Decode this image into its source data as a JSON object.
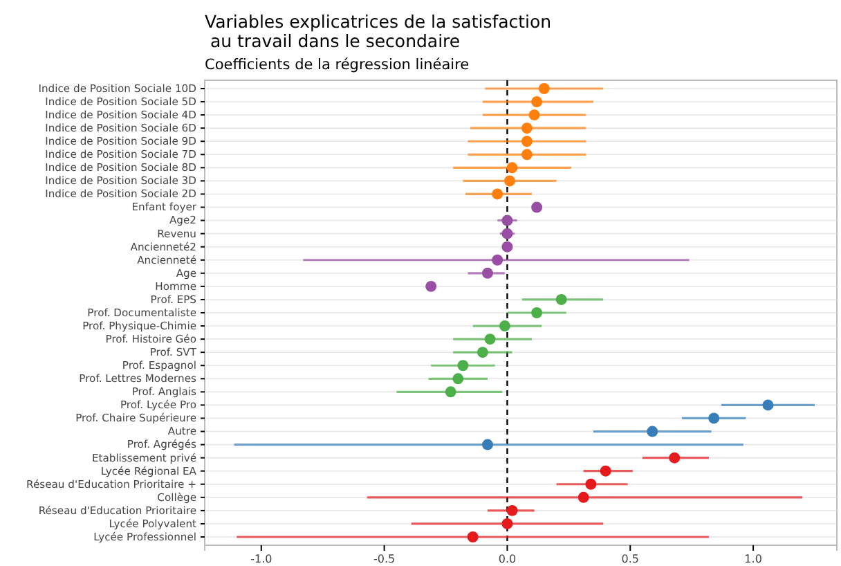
{
  "chart_data": {
    "type": "scatter",
    "orientation": "horizontal",
    "title": "Variables explicatrices de la satisfaction\n au travail dans le secondaire",
    "subtitle": "Coefficients de la régression linéaire",
    "categories": [
      "Indice de Position Sociale 10D",
      "Indice de Position Sociale 5D",
      "Indice de Position Sociale 4D",
      "Indice de Position Sociale 6D",
      "Indice de Position Sociale 9D",
      "Indice de Position Sociale 7D",
      "Indice de Position Sociale 8D",
      "Indice de Position Sociale 3D",
      "Indice de Position Sociale 2D",
      "Enfant foyer",
      "Age2",
      "Revenu",
      "Ancienneté2",
      "Ancienneté",
      "Age",
      "Homme",
      "Prof. EPS",
      "Prof. Documentaliste",
      "Prof. Physique-Chimie",
      "Prof. Histoire Géo",
      "Prof. SVT",
      "Prof. Espagnol",
      "Prof. Lettres Modernes",
      "Prof. Anglais",
      "Prof. Lycée Pro",
      "Prof. Chaire Supérieure",
      "Autre",
      "Prof. Agrégés",
      "Etablissement privé",
      "Lycée Régional EA",
      "Réseau d'Education Prioritaire +",
      "Collège",
      "Réseau d'Education Prioritaire",
      "Lycée Polyvalent",
      "Lycée Professionnel"
    ],
    "series": [
      {
        "color": "#ff7f0e",
        "values": [
          0.15,
          0.12,
          0.11,
          0.08,
          0.08,
          0.08,
          0.02,
          0.01,
          -0.04,
          null,
          null,
          null,
          null,
          null,
          null,
          null,
          null,
          null,
          null,
          null,
          null,
          null,
          null,
          null,
          null,
          null,
          null,
          null,
          null,
          null,
          null,
          null,
          null,
          null,
          null
        ],
        "errors": [
          [
            -0.09,
            0.39
          ],
          [
            -0.1,
            0.35
          ],
          [
            -0.1,
            0.32
          ],
          [
            -0.15,
            0.32
          ],
          [
            -0.16,
            0.32
          ],
          [
            -0.16,
            0.32
          ],
          [
            -0.22,
            0.26
          ],
          [
            -0.18,
            0.2
          ],
          [
            -0.17,
            0.1
          ],
          null,
          null,
          null,
          null,
          null,
          null,
          null,
          null,
          null,
          null,
          null,
          null,
          null,
          null,
          null,
          null,
          null,
          null,
          null,
          null,
          null,
          null,
          null,
          null,
          null,
          null
        ]
      },
      {
        "color": "#984ea3",
        "values": [
          null,
          null,
          null,
          null,
          null,
          null,
          null,
          null,
          null,
          0.12,
          0.0,
          0.0,
          0.0,
          -0.04,
          -0.08,
          -0.31,
          null,
          null,
          null,
          null,
          null,
          null,
          null,
          null,
          null,
          null,
          null,
          null,
          null,
          null,
          null,
          null,
          null,
          null,
          null
        ],
        "errors": [
          null,
          null,
          null,
          null,
          null,
          null,
          null,
          null,
          null,
          null,
          [
            -0.04,
            0.04
          ],
          [
            -0.03,
            0.03
          ],
          null,
          [
            -0.83,
            0.74
          ],
          [
            -0.16,
            -0.01
          ],
          null,
          null,
          null,
          null,
          null,
          null,
          null,
          null,
          null,
          null,
          null,
          null,
          null,
          null,
          null,
          null,
          null,
          null,
          null,
          null
        ]
      },
      {
        "color": "#4daf4a",
        "values": [
          null,
          null,
          null,
          null,
          null,
          null,
          null,
          null,
          null,
          null,
          null,
          null,
          null,
          null,
          null,
          null,
          0.22,
          0.12,
          -0.01,
          -0.07,
          -0.1,
          -0.18,
          -0.2,
          -0.23,
          null,
          null,
          null,
          null,
          null,
          null,
          null,
          null,
          null,
          null,
          null
        ],
        "errors": [
          null,
          null,
          null,
          null,
          null,
          null,
          null,
          null,
          null,
          null,
          null,
          null,
          null,
          null,
          null,
          null,
          [
            0.06,
            0.39
          ],
          [
            0.0,
            0.24
          ],
          [
            -0.14,
            0.14
          ],
          [
            -0.22,
            0.1
          ],
          [
            -0.22,
            0.02
          ],
          [
            -0.31,
            -0.05
          ],
          [
            -0.32,
            -0.08
          ],
          [
            -0.45,
            -0.02
          ],
          null,
          null,
          null,
          null,
          null,
          null,
          null,
          null,
          null,
          null,
          null
        ]
      },
      {
        "color": "#377eb8",
        "values": [
          null,
          null,
          null,
          null,
          null,
          null,
          null,
          null,
          null,
          null,
          null,
          null,
          null,
          null,
          null,
          null,
          null,
          null,
          null,
          null,
          null,
          null,
          null,
          null,
          1.06,
          0.84,
          0.59,
          -0.08,
          null,
          null,
          null,
          null,
          null,
          null,
          null
        ],
        "errors": [
          null,
          null,
          null,
          null,
          null,
          null,
          null,
          null,
          null,
          null,
          null,
          null,
          null,
          null,
          null,
          null,
          null,
          null,
          null,
          null,
          null,
          null,
          null,
          null,
          [
            0.87,
            1.25
          ],
          [
            0.71,
            0.97
          ],
          [
            0.35,
            0.83
          ],
          [
            -1.11,
            0.96
          ],
          null,
          null,
          null,
          null,
          null,
          null,
          null
        ]
      },
      {
        "color": "#e41a1c",
        "values": [
          null,
          null,
          null,
          null,
          null,
          null,
          null,
          null,
          null,
          null,
          null,
          null,
          null,
          null,
          null,
          null,
          null,
          null,
          null,
          null,
          null,
          null,
          null,
          null,
          null,
          null,
          null,
          null,
          0.68,
          0.4,
          0.34,
          0.31,
          0.02,
          0.0,
          -0.14
        ],
        "errors": [
          null,
          null,
          null,
          null,
          null,
          null,
          null,
          null,
          null,
          null,
          null,
          null,
          null,
          null,
          null,
          null,
          null,
          null,
          null,
          null,
          null,
          null,
          null,
          null,
          null,
          null,
          null,
          null,
          [
            0.55,
            0.82
          ],
          [
            0.31,
            0.51
          ],
          [
            0.2,
            0.49
          ],
          [
            -0.57,
            1.2
          ],
          [
            -0.08,
            0.11
          ],
          [
            -0.39,
            0.39
          ],
          [
            -1.1,
            0.82
          ]
        ]
      }
    ],
    "xlim": [
      -1.23,
      1.34
    ],
    "xticks": [
      {
        "value": -1,
        "label": "-1.0"
      },
      {
        "value": -0.5,
        "label": "-0.5"
      },
      {
        "value": 0,
        "label": "0.0"
      },
      {
        "value": 0.5,
        "label": "0.5"
      },
      {
        "value": 1,
        "label": "1.0"
      }
    ],
    "ref_lines": [
      {
        "axis": "x",
        "value": 0,
        "color": "#000000",
        "line_style": "dashed"
      }
    ],
    "grid": "y",
    "marker": "circle"
  }
}
